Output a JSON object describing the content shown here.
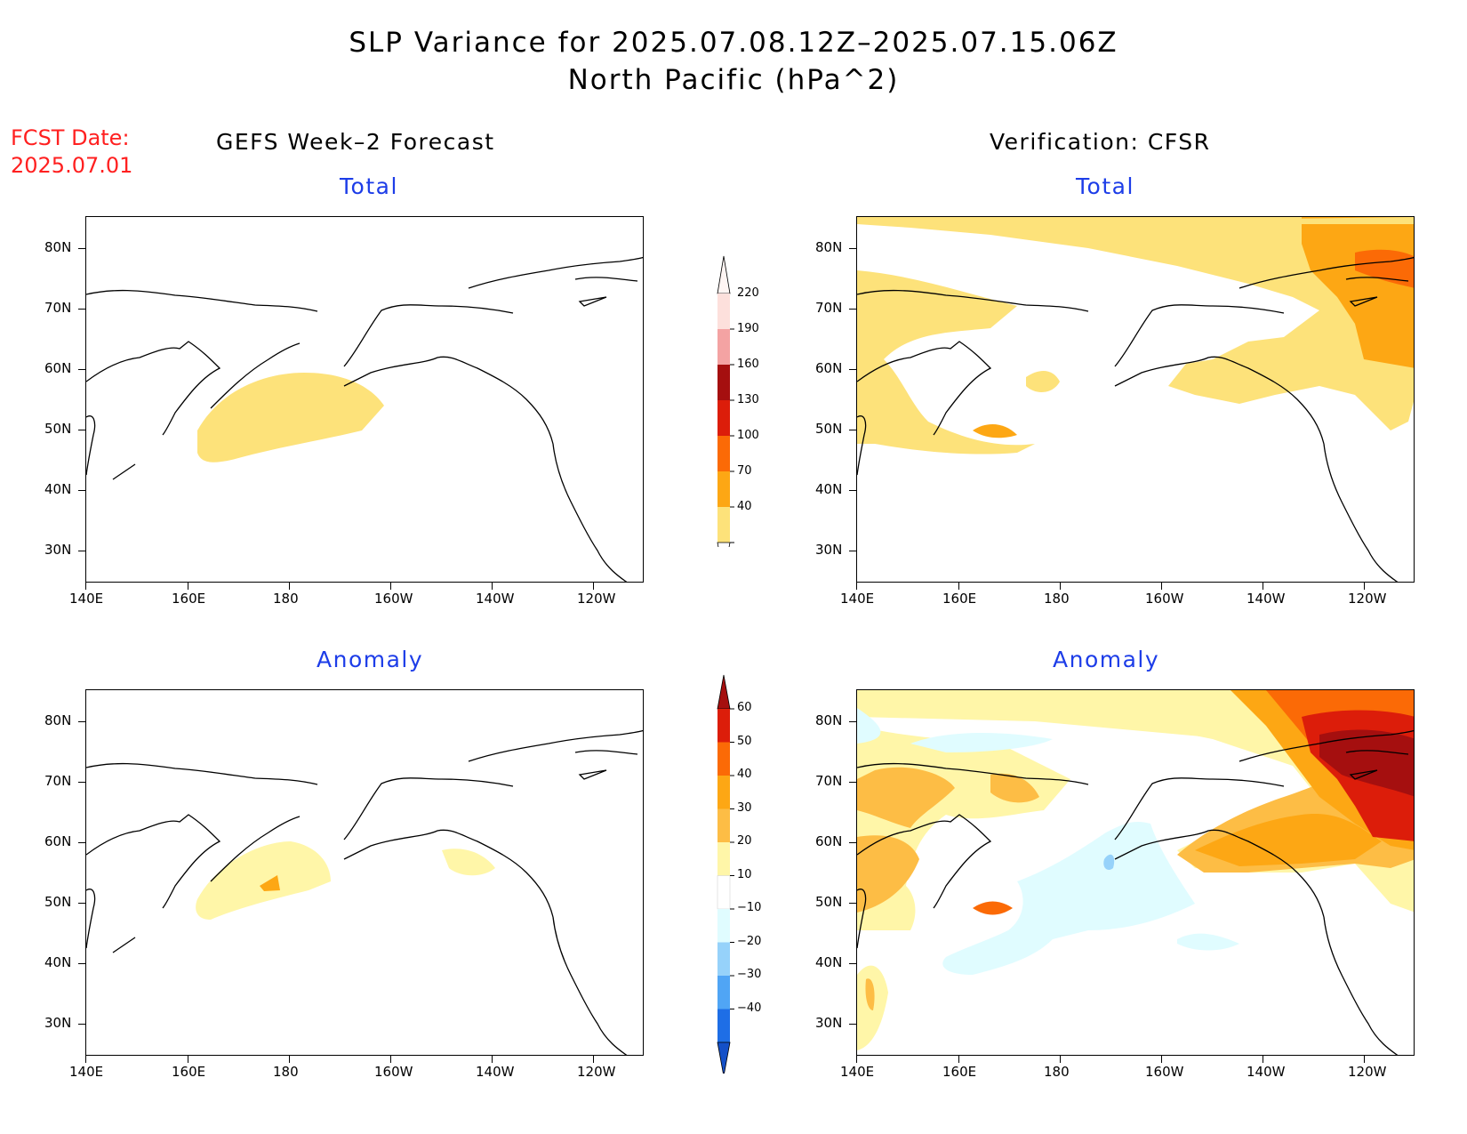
{
  "title_line1": "SLP Variance for 2025.07.08.12Z–2025.07.15.06Z",
  "title_line2": "North Pacific (hPa^2)",
  "fcst_label": "FCST Date:",
  "fcst_date": "2025.07.01",
  "columns": {
    "left": "GEFS Week–2 Forecast",
    "right": "Verification: CFSR"
  },
  "panels": {
    "tl_subtitle": "Total",
    "tr_subtitle": "Total",
    "bl_subtitle": "Anomaly",
    "br_subtitle": "Anomaly"
  },
  "axes": {
    "lat_labels": [
      "80N",
      "70N",
      "60N",
      "50N",
      "40N",
      "30N"
    ],
    "lon_labels": [
      "140E",
      "160E",
      "180",
      "160W",
      "140W",
      "120W"
    ]
  },
  "colorbar_total": {
    "levels": [
      "220",
      "190",
      "160",
      "130",
      "100",
      "70",
      "40"
    ],
    "colors": [
      "#fde0dc",
      "#f4a3a3",
      "#a50f0f",
      "#dc1d0a",
      "#fb6a06",
      "#fda714",
      "#fde27a"
    ]
  },
  "colorbar_anomaly": {
    "levels": [
      "60",
      "50",
      "40",
      "30",
      "20",
      "10",
      "−10",
      "−20",
      "−30",
      "−40"
    ],
    "colors": [
      "#a50f0f",
      "#dc1d0a",
      "#fb6a06",
      "#fda714",
      "#fdbd45",
      "#fff6a8",
      "#ffffff",
      "#e0fcff",
      "#96d2fa",
      "#50a5f5",
      "#1e6ee6",
      "#1450c8"
    ]
  }
}
